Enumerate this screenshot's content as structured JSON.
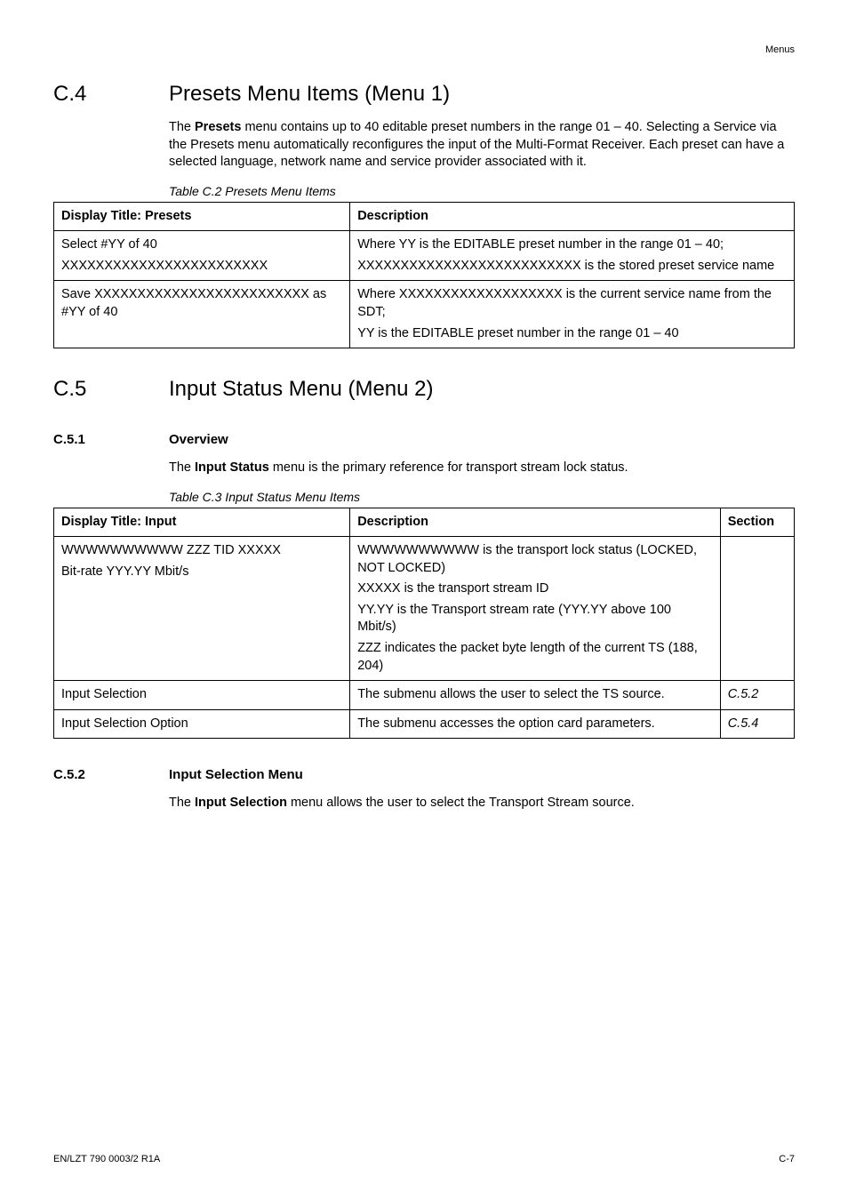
{
  "header_label": "Menus",
  "section_c4": {
    "num": "C.4",
    "title": "Presets Menu Items (Menu 1)",
    "intro_pre": "The ",
    "intro_bold": "Presets",
    "intro_post": " menu contains up to 40 editable preset numbers in the range 01 – 40. Selecting a Service via the Presets menu automatically reconfigures the input of the Multi-Format Receiver. Each preset can have a selected language, network name and service provider associated with it.",
    "table_caption": "Table C.2   Presets Menu Items",
    "col_widths": [
      "40%",
      "60%"
    ],
    "columns": [
      "Display Title: Presets",
      "Description"
    ],
    "rows": [
      {
        "display": [
          "Select #YY of 40",
          "XXXXXXXXXXXXXXXXXXXXXXXX"
        ],
        "desc": [
          "Where YY is the EDITABLE preset number  in the range 01 – 40;",
          "XXXXXXXXXXXXXXXXXXXXXXXXXX is the stored preset service name"
        ]
      },
      {
        "display": [
          "Save XXXXXXXXXXXXXXXXXXXXXXXXX as #YY of 40"
        ],
        "desc": [
          "Where XXXXXXXXXXXXXXXXXXX is the current service name from the SDT;",
          "YY is the EDITABLE preset number  in the range 01 – 40"
        ]
      }
    ]
  },
  "section_c5": {
    "num": "C.5",
    "title": "Input Status Menu (Menu 2)"
  },
  "section_c5_1": {
    "num": "C.5.1",
    "title": "Overview",
    "intro_pre": "The ",
    "intro_bold": "Input Status",
    "intro_post": " menu is the primary reference for transport stream lock status.",
    "table_caption": "Table C.3   Input Status Menu Items",
    "col_widths": [
      "40%",
      "50%",
      "10%"
    ],
    "columns": [
      "Display Title: Input",
      "Description",
      "Section"
    ],
    "rows": [
      {
        "display": [
          "WWWWWWWWWW ZZZ TID XXXXX",
          "Bit-rate YYY.YY Mbit/s"
        ],
        "desc": [
          "WWWWWWWWWW is the transport lock status (LOCKED, NOT LOCKED)",
          "XXXXX is the transport stream ID",
          "YY.YY is the Transport stream rate (YYY.YY above 100 Mbit/s)",
          "ZZZ indicates the packet byte length of the current TS (188, 204)"
        ],
        "section": ""
      },
      {
        "display": [
          "Input Selection"
        ],
        "desc": [
          "The submenu allows the user to select the TS source."
        ],
        "section": "C.5.2"
      },
      {
        "display": [
          "Input Selection Option"
        ],
        "desc": [
          "The submenu accesses the option card parameters."
        ],
        "section": "C.5.4"
      }
    ]
  },
  "section_c5_2": {
    "num": "C.5.2",
    "title": "Input Selection Menu",
    "intro_pre": "The ",
    "intro_bold": "Input Selection",
    "intro_post": " menu allows the user to select the Transport Stream source."
  },
  "footer": {
    "left": "EN/LZT 790 0003/2 R1A",
    "right": "C-7"
  }
}
